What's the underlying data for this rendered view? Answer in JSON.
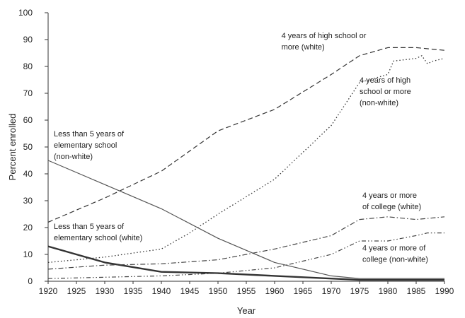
{
  "chart_data": {
    "type": "line",
    "title": "",
    "xlabel": "Year",
    "ylabel": "Percent enrolled",
    "xlim": [
      1920,
      1990
    ],
    "ylim": [
      0,
      100
    ],
    "x_ticks": [
      1920,
      1925,
      1930,
      1935,
      1940,
      1945,
      1950,
      1955,
      1960,
      1965,
      1970,
      1975,
      1980,
      1985,
      1990
    ],
    "y_ticks": [
      0,
      10,
      20,
      30,
      40,
      50,
      60,
      70,
      80,
      90,
      100
    ],
    "grid": false,
    "legend": "none",
    "series": [
      {
        "id": "hs-white",
        "style": "dashed",
        "color": "#333333",
        "points": [
          [
            1920,
            22
          ],
          [
            1930,
            31
          ],
          [
            1940,
            41
          ],
          [
            1950,
            56
          ],
          [
            1960,
            64
          ],
          [
            1970,
            77
          ],
          [
            1975,
            84
          ],
          [
            1980,
            87
          ],
          [
            1985,
            87
          ],
          [
            1990,
            86
          ]
        ]
      },
      {
        "id": "hs-nonwhite",
        "style": "dotted",
        "color": "#333333",
        "points": [
          [
            1920,
            7
          ],
          [
            1930,
            9
          ],
          [
            1940,
            12
          ],
          [
            1945,
            18
          ],
          [
            1950,
            25
          ],
          [
            1960,
            38
          ],
          [
            1970,
            58
          ],
          [
            1975,
            74
          ],
          [
            1980,
            77
          ],
          [
            1981,
            82
          ],
          [
            1985,
            83
          ],
          [
            1986,
            84
          ],
          [
            1987,
            81
          ],
          [
            1988,
            82
          ],
          [
            1990,
            83
          ]
        ]
      },
      {
        "id": "elem-nonwhite",
        "style": "solid",
        "color": "#555555",
        "points": [
          [
            1920,
            45
          ],
          [
            1930,
            36
          ],
          [
            1940,
            27
          ],
          [
            1950,
            16
          ],
          [
            1960,
            7
          ],
          [
            1970,
            2
          ],
          [
            1975,
            1
          ],
          [
            1980,
            1
          ],
          [
            1985,
            1
          ],
          [
            1990,
            1
          ]
        ]
      },
      {
        "id": "elem-white",
        "style": "solid-thick",
        "color": "#333333",
        "points": [
          [
            1920,
            13
          ],
          [
            1930,
            7
          ],
          [
            1940,
            3.5
          ],
          [
            1950,
            3
          ],
          [
            1960,
            2
          ],
          [
            1970,
            1
          ],
          [
            1975,
            0.5
          ],
          [
            1980,
            0.5
          ],
          [
            1985,
            0.5
          ],
          [
            1990,
            0.5
          ]
        ]
      },
      {
        "id": "college-white",
        "style": "dashdot",
        "color": "#444444",
        "points": [
          [
            1920,
            4.5
          ],
          [
            1930,
            6
          ],
          [
            1940,
            6.5
          ],
          [
            1950,
            8
          ],
          [
            1960,
            12
          ],
          [
            1970,
            17
          ],
          [
            1975,
            23
          ],
          [
            1980,
            24
          ],
          [
            1985,
            23
          ],
          [
            1990,
            24
          ]
        ]
      },
      {
        "id": "college-nonwhite",
        "style": "dashdotdot",
        "color": "#444444",
        "points": [
          [
            1920,
            1
          ],
          [
            1930,
            1.5
          ],
          [
            1940,
            2
          ],
          [
            1950,
            3
          ],
          [
            1960,
            5
          ],
          [
            1970,
            10
          ],
          [
            1975,
            15
          ],
          [
            1980,
            15
          ],
          [
            1985,
            17
          ],
          [
            1987,
            18
          ],
          [
            1990,
            18
          ]
        ]
      }
    ],
    "annotations": [
      {
        "id": "hs-white",
        "lines": [
          "4 years of high school or",
          "more (white)"
        ],
        "x": 1961.2,
        "y": 90.5
      },
      {
        "id": "hs-nonwhite",
        "lines": [
          "4 years of high",
          "school or more",
          "(non-white)"
        ],
        "x": 1975,
        "y": 74
      },
      {
        "id": "elem-nonwhite",
        "lines": [
          "Less than 5 years of",
          "elementary school",
          "(non-white)"
        ],
        "x": 1921,
        "y": 54
      },
      {
        "id": "elem-white",
        "lines": [
          "Less than 5 years of",
          "elementary school (white)"
        ],
        "x": 1921,
        "y": 19.5
      },
      {
        "id": "college-white",
        "lines": [
          "4 years or more",
          "of college (white)"
        ],
        "x": 1975.5,
        "y": 31
      },
      {
        "id": "college-nonwhite",
        "lines": [
          "4 years or more of",
          "college (non-white)"
        ],
        "x": 1975.5,
        "y": 11.5
      }
    ]
  }
}
